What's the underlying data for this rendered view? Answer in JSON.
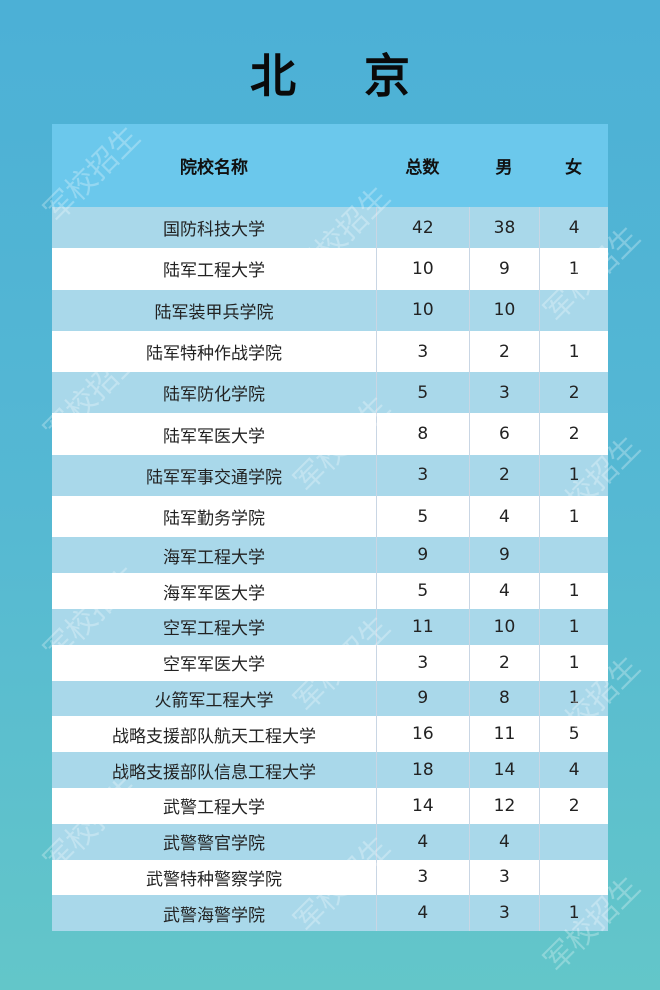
{
  "title": "北 京",
  "watermark": "军校招生",
  "colors": {
    "header_bg": "#6bc8ec",
    "row_alt_bg": "#a9d8ea",
    "row_bg": "#ffffff",
    "page_bg": "#4cb0d6"
  },
  "table": {
    "headers": [
      "院校名称",
      "总数",
      "男",
      "女"
    ],
    "rows": [
      [
        "国防科技大学",
        "42",
        "38",
        "4"
      ],
      [
        "陆军工程大学",
        "10",
        "9",
        "1"
      ],
      [
        "陆军装甲兵学院",
        "10",
        "10",
        ""
      ],
      [
        "陆军特种作战学院",
        "3",
        "2",
        "1"
      ],
      [
        "陆军防化学院",
        "5",
        "3",
        "2"
      ],
      [
        "陆军军医大学",
        "8",
        "6",
        "2"
      ],
      [
        "陆军军事交通学院",
        "3",
        "2",
        "1"
      ],
      [
        "陆军勤务学院",
        "5",
        "4",
        "1"
      ],
      [
        "海军工程大学",
        "9",
        "9",
        ""
      ],
      [
        "海军军医大学",
        "5",
        "4",
        "1"
      ],
      [
        "空军工程大学",
        "11",
        "10",
        "1"
      ],
      [
        "空军军医大学",
        "3",
        "2",
        "1"
      ],
      [
        "火箭军工程大学",
        "9",
        "8",
        "1"
      ],
      [
        "战略支援部队航天工程大学",
        "16",
        "11",
        "5"
      ],
      [
        "战略支援部队信息工程大学",
        "18",
        "14",
        "4"
      ],
      [
        "武警工程大学",
        "14",
        "12",
        "2"
      ],
      [
        "武警警官学院",
        "4",
        "4",
        ""
      ],
      [
        "武警特种警察学院",
        "3",
        "3",
        ""
      ],
      [
        "武警海警学院",
        "4",
        "3",
        "1"
      ]
    ]
  }
}
